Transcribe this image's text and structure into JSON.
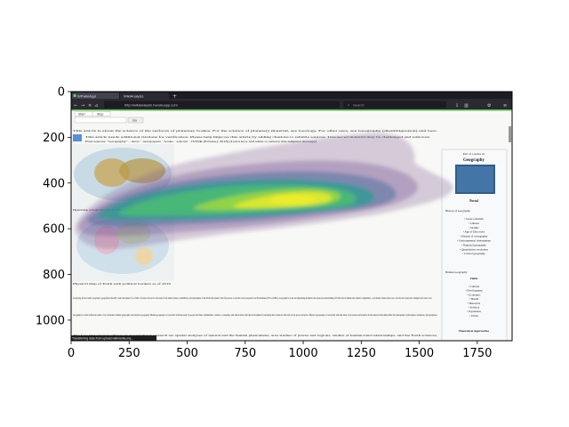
{
  "chart_data": {
    "type": "heatmap",
    "title": "",
    "xlabel": "",
    "ylabel": "",
    "xlim": [
      0,
      1900
    ],
    "ylim": [
      1090,
      0
    ],
    "x_ticks": [
      0,
      250,
      500,
      750,
      1000,
      1250,
      1500,
      1750
    ],
    "y_ticks": [
      0,
      200,
      400,
      600,
      800,
      1000
    ],
    "density_center": [
      920,
      500
    ],
    "overlay_colors": [
      "#6a3d7a",
      "#3b528b",
      "#21918c",
      "#5ec962",
      "#fde725"
    ]
  },
  "browser": {
    "tab1": "WPwikiAppl",
    "tab2": "WikiAnalysis",
    "url": "http://wikianalysis.herokuapp.com",
    "search_placeholder": "Search"
  },
  "page": {
    "btn_start": "Start",
    "btn_stop": "Stop",
    "btn_go": "Go",
    "hatnote": "This article is about the science of the surfaces of planetary bodies. For the science of planetary material, see Geology. For other uses, see Geography (disambiguation) and Geo.",
    "notice1": "This article needs additional citations for verification. Please help improve this article by adding citations to reliable sources. Unsourced material may be challenged and removed.",
    "notice2": "Find sources: \"Geography\" – news · newspapers · books · scholar · JSTOR (February 2018) (Learn how and when to remove this template message)",
    "map_caption": "Physical map of Earth with political borders as of 2019",
    "para1": "Geography (from Greek: γεωγραφία, geographia, literally \"earth description\") is a field of science devoted to the study of the lands, features, inhabitants, and phenomena of the Earth and planets. The first person to use the word γεωγραφία was Eratosthenes (276–194 BC). Geography is an all-encompassing discipline that seeks an understanding of Earth and its human and natural complexities—not merely where objects are, but also how they have changed and come to be.",
    "para2": "Geography is often defined in terms of two branches: human geography and physical geography. Human geography is concerned with the study of people and their communities, cultures, economies, and interactions with the environment by studying their relations with and across space and place. Physical geography is concerned with the study of processes and patterns in the natural environment like the atmosphere, hydrosphere, biosphere, and geosphere.",
    "para3": "The four historical traditions in geographical research are spatial analyses of natural and the human phenomena, area studies of places and regions, studies of human-land relationships, and the Earth sciences.",
    "status_bar": "Transferring data from upload.wikimedia.org..."
  },
  "sidebar": {
    "part_of": "Part of a series on",
    "title": "Geography",
    "portal": "Portal",
    "links1": [
      "History of Geography"
    ],
    "list1": [
      "Graeco-Roman",
      "Chinese",
      "Islamic",
      "Age of Discovery",
      "History of cartography",
      "Environmental determinism",
      "Regional geography",
      "Quantitative revolution",
      "Critical geography"
    ],
    "human_geo": "Human Geography",
    "fields": "Fields",
    "list2": [
      "Cultural",
      "Development",
      "Economic",
      "Health",
      "Historical",
      "Political",
      "Population",
      "Urban"
    ],
    "approaches": "Theoretical Approaches"
  }
}
